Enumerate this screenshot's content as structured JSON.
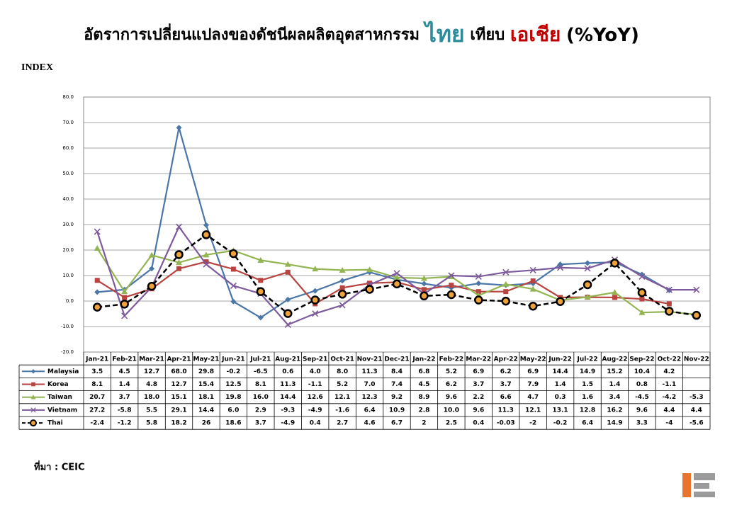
{
  "chart_data": {
    "type": "line",
    "title": [
      "อัตราการเปลี่ยนแปลงของดัชนีผลผลิตอุตสาหกรรม",
      "ไทย",
      "เทียบ",
      "เอเชีย",
      "(%YoY)"
    ],
    "y_label": "INDEX",
    "source": "ที่มา : CEIC",
    "categories": [
      "Jan-21",
      "Feb-21",
      "Mar-21",
      "Apr-21",
      "May-21",
      "Jun-21",
      "Jul-21",
      "Aug-21",
      "Sep-21",
      "Oct-21",
      "Nov-21",
      "Dec-21",
      "Jan-22",
      "Feb-22",
      "Mar-22",
      "Apr-22",
      "May-22",
      "Jun-22",
      "Jul-22",
      "Aug-22",
      "Sep-22",
      "Oct-22",
      "Nov-22"
    ],
    "ylim": [
      -20,
      80
    ],
    "yticks": [
      {
        "value": -20,
        "label": "-20.0"
      },
      {
        "value": -10,
        "label": "-10.0"
      },
      {
        "value": 0,
        "label": "0.0"
      },
      {
        "value": 10,
        "label": "10.0"
      },
      {
        "value": 20,
        "label": "20.0"
      },
      {
        "value": 30,
        "label": "30.0"
      },
      {
        "value": 40,
        "label": "40.0"
      },
      {
        "value": 50,
        "label": "50.0"
      },
      {
        "value": 60,
        "label": "60.0"
      },
      {
        "value": 70,
        "label": "70.0"
      },
      {
        "value": 80,
        "label": "80.0"
      }
    ],
    "grid": true,
    "series": [
      {
        "name": "Malaysia",
        "color": "#4a76a8",
        "marker": "diamond",
        "values": [
          3.5,
          4.5,
          12.7,
          68,
          29.8,
          -0.2,
          -6.5,
          0.6,
          4,
          8,
          11.3,
          8.4,
          6.8,
          5.2,
          6.9,
          6.2,
          6.9,
          14.4,
          14.9,
          15.2,
          10.4,
          4.2,
          null
        ],
        "value_labels": [
          "3.5",
          "4.5",
          "12.7",
          "68.0",
          "29.8",
          "-0.2",
          "-6.5",
          "0.6",
          "4.0",
          "8.0",
          "11.3",
          "8.4",
          "6.8",
          "5.2",
          "6.9",
          "6.2",
          "6.9",
          "14.4",
          "14.9",
          "15.2",
          "10.4",
          "4.2",
          null
        ]
      },
      {
        "name": "Korea",
        "color": "#b8433f",
        "marker": "square",
        "values": [
          8.1,
          1.4,
          4.8,
          12.7,
          15.4,
          12.5,
          8.1,
          11.3,
          -1.1,
          5.2,
          7,
          7.4,
          4.5,
          6.2,
          3.7,
          3.7,
          7.9,
          1.4,
          1.5,
          1.4,
          0.8,
          -1.1,
          null
        ],
        "value_labels": [
          "8.1",
          "1.4",
          "4.8",
          "12.7",
          "15.4",
          "12.5",
          "8.1",
          "11.3",
          "-1.1",
          "5.2",
          "7.0",
          "7.4",
          "4.5",
          "6.2",
          "3.7",
          "3.7",
          "7.9",
          "1.4",
          "1.5",
          "1.4",
          "0.8",
          "-1.1",
          null
        ]
      },
      {
        "name": "Taiwan",
        "color": "#92b551",
        "marker": "triangle",
        "values": [
          20.7,
          3.7,
          18,
          15.1,
          18.1,
          19.8,
          16,
          14.4,
          12.6,
          12.1,
          12.3,
          9.2,
          8.9,
          9.6,
          2.2,
          6.6,
          4.7,
          0.3,
          1.6,
          3.4,
          -4.5,
          -4.2,
          -5.3
        ],
        "value_labels": [
          "20.7",
          "3.7",
          "18.0",
          "15.1",
          "18.1",
          "19.8",
          "16.0",
          "14.4",
          "12.6",
          "12.1",
          "12.3",
          "9.2",
          "8.9",
          "9.6",
          "2.2",
          "6.6",
          "4.7",
          "0.3",
          "1.6",
          "3.4",
          "-4.5",
          "-4.2",
          "-5.3"
        ]
      },
      {
        "name": "Vietnam",
        "color": "#7d5a9b",
        "marker": "x",
        "values": [
          27.2,
          -5.8,
          5.5,
          29.1,
          14.4,
          6,
          2.9,
          -9.3,
          -4.9,
          -1.6,
          6.4,
          10.9,
          2.8,
          10,
          9.6,
          11.3,
          12.1,
          13.1,
          12.8,
          16.2,
          9.6,
          4.4,
          4.4
        ],
        "value_labels": [
          "27.2",
          "-5.8",
          "5.5",
          "29.1",
          "14.4",
          "6.0",
          "2.9",
          "-9.3",
          "-4.9",
          "-1.6",
          "6.4",
          "10.9",
          "2.8",
          "10.0",
          "9.6",
          "11.3",
          "12.1",
          "13.1",
          "12.8",
          "16.2",
          "9.6",
          "4.4",
          "4.4"
        ]
      },
      {
        "name": "Thai",
        "color": "#000000",
        "marker": "circle",
        "dashed": true,
        "values": [
          -2.4,
          -1.2,
          5.8,
          18.2,
          26,
          18.6,
          3.7,
          -4.9,
          0.4,
          2.7,
          4.6,
          6.7,
          2,
          2.5,
          0.4,
          -0.03,
          -2,
          -0.2,
          6.4,
          14.9,
          3.3,
          -4,
          -5.6
        ],
        "value_labels": [
          "-2.4",
          "-1.2",
          "5.8",
          "18.2",
          "26",
          "18.6",
          "3.7",
          "-4.9",
          "0.4",
          "2.7",
          "4.6",
          "6.7",
          "2",
          "2.5",
          "0.4",
          "-0.03",
          "-2",
          "-0.2",
          "6.4",
          "14.9",
          "3.3",
          "-4",
          "-5.6"
        ]
      }
    ]
  }
}
